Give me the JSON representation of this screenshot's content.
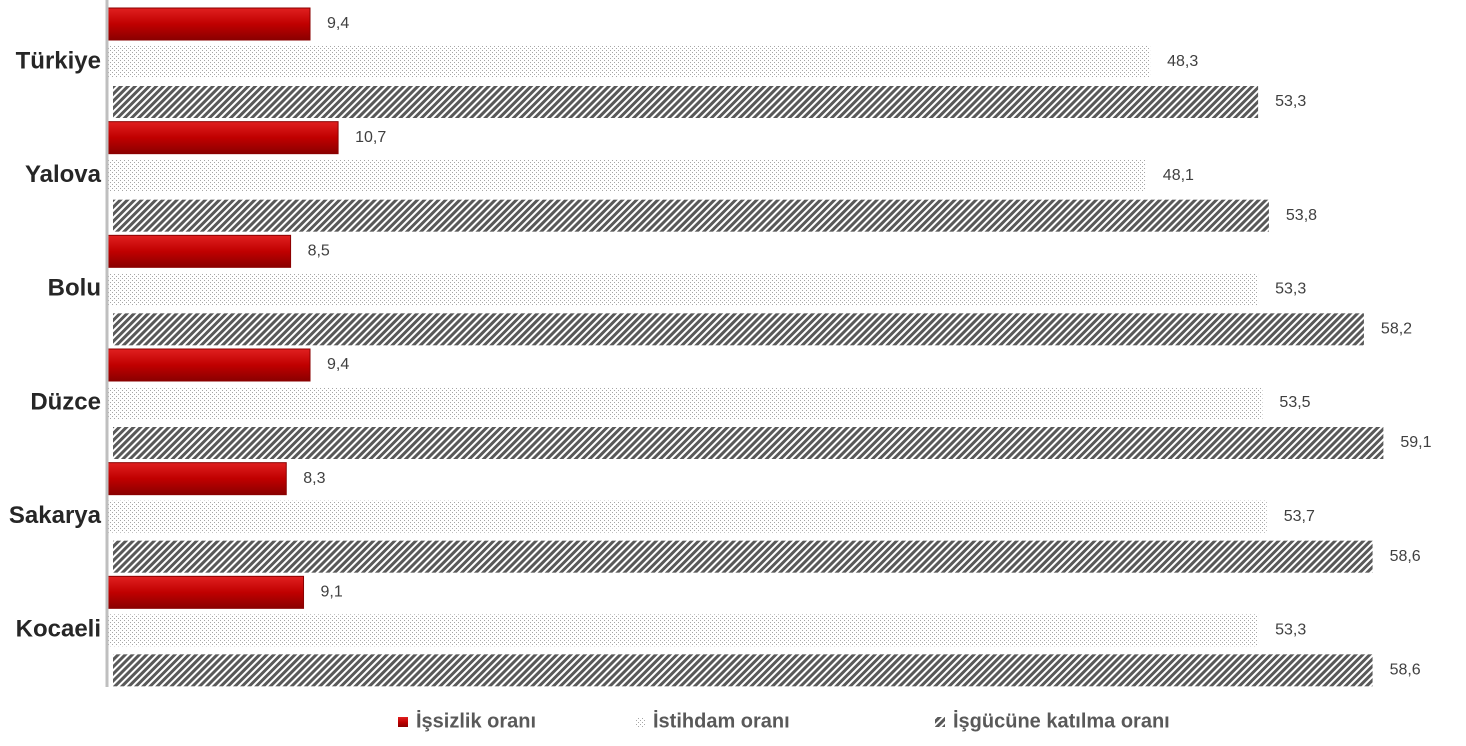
{
  "chart_data": {
    "type": "hbar",
    "categories": [
      "Türkiye",
      "Yalova",
      "Bolu",
      "Düzce",
      "Sakarya",
      "Kocaeli"
    ],
    "series": [
      {
        "name": "İşsizlik oranı",
        "color": "#c00000",
        "pattern": "solid",
        "values": [
          9.4,
          10.7,
          8.5,
          9.4,
          8.3,
          9.1
        ],
        "value_labels": [
          "9,4",
          "10,7",
          "8,5",
          "9,4",
          "8,3",
          "9,1"
        ]
      },
      {
        "name": "İstihdam oranı",
        "color": "#a6a6a6",
        "pattern": "dots",
        "values": [
          48.3,
          48.1,
          53.3,
          53.5,
          53.7,
          53.3
        ],
        "value_labels": [
          "48,3",
          "48,1",
          "53,3",
          "53,5",
          "53,7",
          "53,3"
        ]
      },
      {
        "name": "İşgücüne katılma oranı",
        "color": "#595959",
        "pattern": "hatch",
        "values": [
          53.3,
          53.8,
          58.2,
          59.1,
          58.6,
          58.6
        ],
        "value_labels": [
          "53,3",
          "53,8",
          "58,2",
          "59,1",
          "58,6",
          "58,6"
        ]
      }
    ],
    "xlim": [
      0,
      62
    ],
    "legend": "bottom"
  }
}
